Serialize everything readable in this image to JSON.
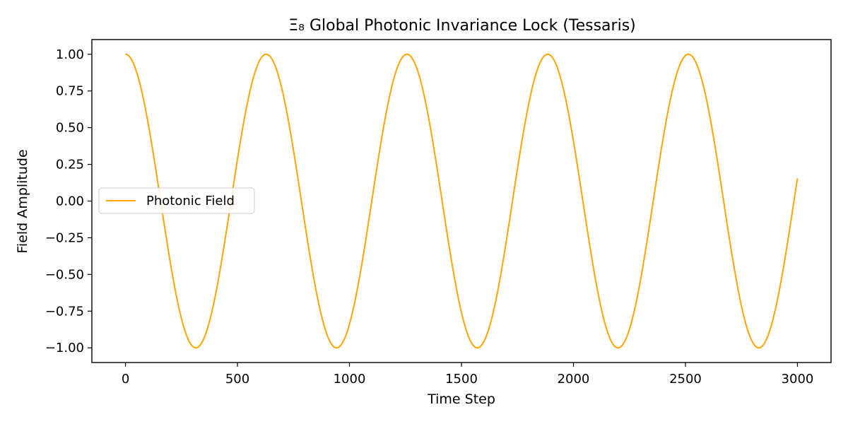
{
  "chart_data": {
    "type": "line",
    "title": "Ξ₈ Global Photonic Invariance Lock (Tessaris)",
    "xlabel": "Time Step",
    "ylabel": "Field Amplitude",
    "xlim": [
      -150,
      3150
    ],
    "ylim": [
      -1.1,
      1.1
    ],
    "x_ticks": [
      0,
      500,
      1000,
      1500,
      2000,
      2500,
      3000
    ],
    "x_tick_labels": [
      "0",
      "500",
      "1000",
      "1500",
      "2000",
      "2500",
      "3000"
    ],
    "y_ticks": [
      1.0,
      0.75,
      0.5,
      0.25,
      0.0,
      -0.25,
      -0.5,
      -0.75,
      -1.0
    ],
    "y_tick_labels": [
      "1.00",
      "0.75",
      "0.50",
      "0.25",
      "0.00",
      "−0.25",
      "−0.50",
      "−0.75",
      "−1.00"
    ],
    "grid": false,
    "legend_position": "center-left",
    "series": [
      {
        "name": "Photonic Field",
        "color": "#ffa500",
        "function": "cos(0.01 * x)",
        "x_range": [
          0,
          3000
        ],
        "x": [
          0,
          157,
          314,
          471,
          628,
          785,
          942,
          1100,
          1257,
          1414,
          1571,
          1728,
          1885,
          2042,
          2199,
          2356,
          2513,
          2670,
          2827,
          3000
        ],
        "y": [
          1.0,
          0.0,
          -1.0,
          0.0,
          1.0,
          0.0,
          -1.0,
          0.0,
          1.0,
          0.0,
          -1.0,
          0.0,
          1.0,
          0.0,
          -1.0,
          0.0,
          1.0,
          0.0,
          -1.0,
          0.15
        ]
      }
    ]
  }
}
